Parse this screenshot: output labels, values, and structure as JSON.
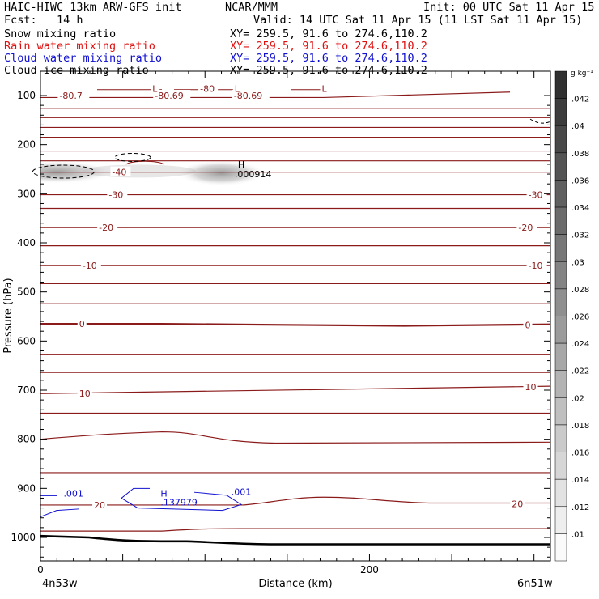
{
  "header": {
    "title": "HAIC-HIWC 13km ARW-GFS init",
    "org": "NCAR/MMM",
    "init": "Init: 00 UTC Sat 11 Apr 15",
    "fcst": "Fcst:   14 h",
    "valid": "Valid: 14 UTC Sat 11 Apr 15 (11 LST Sat 11 Apr 15)"
  },
  "fields": [
    {
      "name": "Snow mixing ratio",
      "xy": "XY= 259.5, 91.6 to 274.6,110.2",
      "color": "#000000"
    },
    {
      "name": "Rain water mixing ratio",
      "xy": "XY= 259.5, 91.6 to 274.6,110.2",
      "color": "#e01010"
    },
    {
      "name": "Cloud water mixing ratio",
      "xy": "XY= 259.5, 91.6 to 274.6,110.2",
      "color": "#1010d0"
    },
    {
      "name": "Cloud ice mixing ratio",
      "xy": "XY= 259.5, 91.6 to 274.6,110.2",
      "color": "#000000"
    }
  ],
  "chart_data": {
    "type": "heatmap",
    "ylabel": "Pressure (hPa)",
    "xlabel": "Distance (km)",
    "x_ticks": [
      0,
      200
    ],
    "x_range": [
      0,
      310
    ],
    "y_ticks": [
      100,
      200,
      300,
      400,
      500,
      600,
      700,
      800,
      900,
      1000
    ],
    "y_range": [
      50,
      1050
    ],
    "left_endpoint": "4n53w",
    "right_endpoint": "6n51w",
    "colorbar": {
      "unit": "g kg⁻¹",
      "labels": [
        ".042",
        ".04",
        ".038",
        ".036",
        ".034",
        ".032",
        ".03",
        ".028",
        ".026",
        ".024",
        ".022",
        ".02",
        ".018",
        ".016",
        ".014",
        ".012",
        ".01"
      ]
    },
    "temperature_labels": [
      {
        "text": "-80.7",
        "x": 12,
        "p": 100
      },
      {
        "text": "-80.69",
        "x": 70,
        "p": 100
      },
      {
        "text": "-80.69",
        "x": 118,
        "p": 100
      },
      {
        "text": "-40",
        "x": 44,
        "p": 256
      },
      {
        "text": "-30",
        "x": 42,
        "p": 302
      },
      {
        "text": "-30",
        "x": 297,
        "p": 302
      },
      {
        "text": "-20",
        "x": 36,
        "p": 369
      },
      {
        "text": "-20",
        "x": 291,
        "p": 369
      },
      {
        "text": "-10",
        "x": 26,
        "p": 446
      },
      {
        "text": "-10",
        "x": 297,
        "p": 446
      },
      {
        "text": "0",
        "x": 24,
        "p": 565
      },
      {
        "text": "0",
        "x": 295,
        "p": 567
      },
      {
        "text": "10",
        "x": 24,
        "p": 707
      },
      {
        "text": "10",
        "x": 295,
        "p": 693
      },
      {
        "text": "20",
        "x": 33,
        "p": 934
      },
      {
        "text": "20",
        "x": 287,
        "p": 932
      }
    ],
    "low_markers": [
      {
        "text": "L",
        "x": 68,
        "p": 88
      },
      {
        "text": "L",
        "x": 118,
        "p": 88
      },
      {
        "text": "L",
        "x": 171,
        "p": 88
      }
    ],
    "dash_labels": [
      {
        "text": "-80",
        "x": 97,
        "p": 88
      }
    ],
    "snow_max": {
      "label": "H",
      "value": ".000914",
      "x": 120,
      "p": 260
    },
    "cloud_water_labels": [
      {
        "text": ".001",
        "x": 14,
        "p": 910
      },
      {
        "text": ".001",
        "x": 116,
        "p": 907
      },
      {
        "text": "H",
        "x": 73,
        "p": 910
      },
      {
        "text": ".137979",
        "x": 73,
        "p": 928
      }
    ],
    "isotherm_pressures": [
      100,
      126,
      145,
      165,
      185,
      213,
      233,
      256,
      302,
      330,
      369,
      406,
      446,
      483,
      524,
      565,
      627,
      664,
      707,
      747,
      800,
      868,
      934,
      987
    ]
  }
}
